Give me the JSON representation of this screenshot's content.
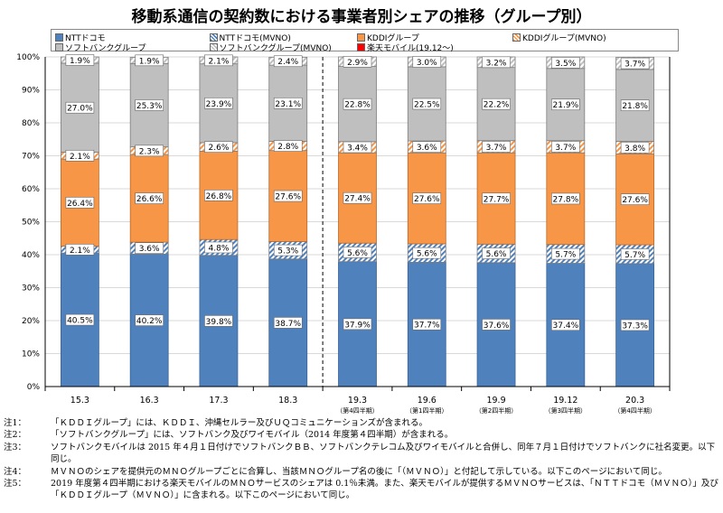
{
  "title": "移動系通信の契約数における事業者別シェアの推移（グループ別）",
  "legend": [
    {
      "label": "NTTドコモ",
      "color": "#4f81bd",
      "hatch": false
    },
    {
      "label": "NTTドコモ(MVNO)",
      "color": "#4f81bd",
      "hatch": true
    },
    {
      "label": "KDDIグループ",
      "color": "#f79646",
      "hatch": false
    },
    {
      "label": "KDDIグループ(MVNO)",
      "color": "#f79646",
      "hatch": true
    },
    {
      "label": "ソフトバンクグループ",
      "color": "#bfbfbf",
      "hatch": false
    },
    {
      "label": "ソフトバンクグループ(MVNO)",
      "color": "#bfbfbf",
      "hatch": true
    },
    {
      "label": "楽天モバイル(19.12～)",
      "color": "#ff0000",
      "hatch": false
    }
  ],
  "chart_data": {
    "type": "bar",
    "stacked": true,
    "title": "移動系通信の契約数における事業者別シェアの推移（グループ別）",
    "categories": [
      "15.3",
      "16.3",
      "17.3",
      "18.3",
      "19.3",
      "19.6",
      "19.9",
      "19.12",
      "20.3"
    ],
    "sublabels": [
      "",
      "",
      "",
      "",
      "（第4四半期）",
      "（第1四半期）",
      "（第2四半期）",
      "（第3四半期）",
      "（第4四半期）"
    ],
    "ylim": [
      0,
      100
    ],
    "yticks": [
      "0%",
      "10%",
      "20%",
      "30%",
      "40%",
      "50%",
      "60%",
      "70%",
      "80%",
      "90%",
      "100%"
    ],
    "grid": true,
    "legend_position": "top",
    "divider_after_category": "18.3",
    "series": [
      {
        "name": "NTTドコモ",
        "values": [
          40.5,
          40.2,
          39.8,
          38.7,
          37.9,
          37.7,
          37.6,
          37.4,
          37.3
        ]
      },
      {
        "name": "NTTドコモ(MVNO)",
        "values": [
          2.1,
          3.6,
          4.8,
          5.3,
          5.6,
          5.6,
          5.6,
          5.7,
          5.7
        ]
      },
      {
        "name": "KDDIグループ",
        "values": [
          26.4,
          26.6,
          26.8,
          27.6,
          27.4,
          27.6,
          27.7,
          27.8,
          27.6
        ]
      },
      {
        "name": "KDDIグループ(MVNO)",
        "values": [
          2.1,
          2.3,
          2.6,
          2.8,
          3.4,
          3.6,
          3.7,
          3.7,
          3.8
        ]
      },
      {
        "name": "ソフトバンクグループ",
        "values": [
          27.0,
          25.3,
          23.9,
          23.1,
          22.8,
          22.5,
          22.2,
          21.9,
          21.8
        ]
      },
      {
        "name": "ソフトバンクグループ(MVNO)",
        "values": [
          1.9,
          1.9,
          2.1,
          2.4,
          2.9,
          3.0,
          3.2,
          3.5,
          3.7
        ]
      },
      {
        "name": "楽天モバイル(19.12～)",
        "values": [
          0,
          0,
          0,
          0,
          0,
          0,
          0,
          0,
          0
        ]
      }
    ]
  },
  "notes": [
    {
      "key": "注1：",
      "text": "「ＫＤＤＩグループ」には、ＫＤＤＩ、沖縄セルラー及びＵＱコミュニケーションズが含まれる。"
    },
    {
      "key": "注2：",
      "text": "「ソフトバンクグループ」には、ソフトバンク及びワイモバイル（2014 年度第４四半期）が含まれる。"
    },
    {
      "key": "注3：",
      "text": "ソフトバンクモバイルは 2015 年４月１日付けでソフトバンクＢＢ、ソフトバンクテレコム及びワイモバイルと合併し、同年７月１日付けでソフトバンクに社名変更。以下同じ。"
    },
    {
      "key": "注4：",
      "text": "ＭＶＮＯのシェアを提供元のＭＮＯグループごとに合算し、当該ＭＮＯグループ名の後に「（ＭＶＮＯ）」と付記して示している。以下このページにおいて同じ。"
    },
    {
      "key": "注5：",
      "text": "2019 年度第４四半期における楽天モバイルのＭＮＯサービスのシェアは 0.1％未満。また、楽天モバイルが提供するＭＶＮＯサービスは、「ＮＴＴドコモ（ＭＶＮＯ）」及び「ＫＤＤＩグループ（ＭＶＮＯ）」に含まれる。以下このページにおいて同じ。"
    }
  ]
}
